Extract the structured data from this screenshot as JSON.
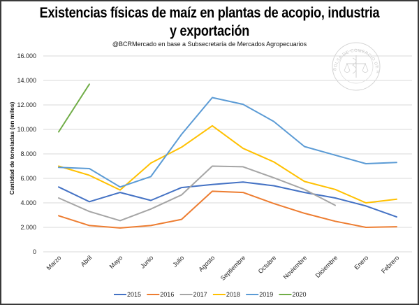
{
  "chart_data": {
    "type": "line",
    "title": "Existencias físicas de maíz en plantas de acopio, industria y exportación",
    "title_line1": "Existencias físicas de maíz en plantas de acopio, industria",
    "title_line2": "y exportación",
    "subtitle": "@BCRMercado en base a Subsecretaría de Mercados Agropecuarios",
    "xlabel": "",
    "ylabel": "Cantidad de toneladas (en miles)",
    "ylim": [
      0,
      16000
    ],
    "yticks": [
      0,
      2000,
      4000,
      6000,
      8000,
      10000,
      12000,
      14000,
      16000
    ],
    "ytick_labels": [
      "0",
      "2.000",
      "4.000",
      "6.000",
      "8.000",
      "10.000",
      "12.000",
      "14.000",
      "16.000"
    ],
    "grid": true,
    "legend_position": "bottom",
    "categories": [
      "Marzo",
      "Abril",
      "Mayo",
      "Junio",
      "Julio",
      "Agosto",
      "Septiembre",
      "Octubre",
      "Noviembre",
      "Diciembre",
      "Enero",
      "Febrero"
    ],
    "series": [
      {
        "name": "2015",
        "color": "#4472C4",
        "values": [
          5300,
          4100,
          4850,
          4200,
          5250,
          5500,
          5700,
          5400,
          4850,
          4400,
          3750,
          2850
        ]
      },
      {
        "name": "2016",
        "color": "#ED7D31",
        "values": [
          2950,
          2150,
          1950,
          2150,
          2650,
          4950,
          4850,
          3950,
          3150,
          2500,
          2000,
          2050
        ]
      },
      {
        "name": "2017",
        "color": "#A5A5A5",
        "values": [
          4400,
          3300,
          2550,
          3500,
          4650,
          7000,
          6950,
          6050,
          5100,
          3800,
          null,
          null
        ]
      },
      {
        "name": "2018",
        "color": "#FFC000",
        "values": [
          7000,
          6250,
          5050,
          7250,
          8550,
          10300,
          8450,
          7350,
          5750,
          5100,
          4000,
          4300
        ]
      },
      {
        "name": "2019",
        "color": "#5B9BD5",
        "values": [
          6900,
          6800,
          5300,
          6150,
          9600,
          12600,
          12050,
          10650,
          8600,
          7900,
          7200,
          7300
        ]
      },
      {
        "name": "2020",
        "color": "#70AD47",
        "values": [
          9800,
          13700,
          null,
          null,
          null,
          null,
          null,
          null,
          null,
          null,
          null,
          null
        ]
      }
    ]
  },
  "watermark": {
    "text": "BOLSA DE COMERCIO DE ROSARIO"
  }
}
